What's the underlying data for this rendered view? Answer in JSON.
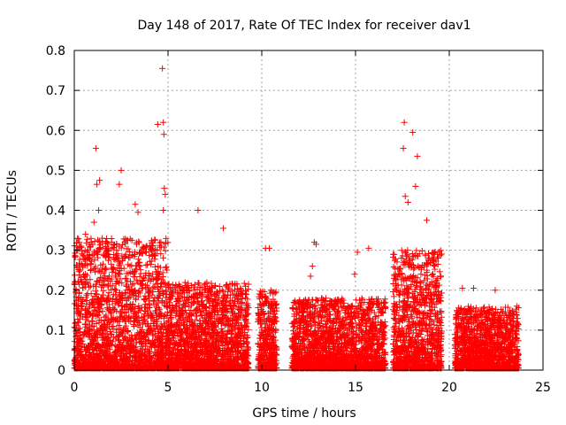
{
  "chart_data": {
    "type": "scatter",
    "title": "Day 148 of 2017, Rate Of TEC Index for receiver dav1",
    "xlabel": "GPS time / hours",
    "ylabel": "ROTI / TECUs",
    "xlim": [
      0,
      25
    ],
    "ylim": [
      0,
      0.8
    ],
    "x_ticks": [
      "0",
      "5",
      "10",
      "15",
      "20",
      "25"
    ],
    "y_ticks": [
      "0",
      "0.1",
      "0.2",
      "0.3",
      "0.4",
      "0.5",
      "0.6",
      "0.7",
      "0.8"
    ],
    "grid": true,
    "marker": "+",
    "color": "#ff0000",
    "notable_points": [
      {
        "x": 4.7,
        "y": 0.755
      },
      {
        "x": 4.45,
        "y": 0.615
      },
      {
        "x": 4.75,
        "y": 0.62
      },
      {
        "x": 4.78,
        "y": 0.59
      },
      {
        "x": 17.6,
        "y": 0.62
      },
      {
        "x": 18.05,
        "y": 0.595
      },
      {
        "x": 18.3,
        "y": 0.535
      },
      {
        "x": 1.15,
        "y": 0.555
      },
      {
        "x": 17.55,
        "y": 0.555
      },
      {
        "x": 2.5,
        "y": 0.5
      },
      {
        "x": 1.35,
        "y": 0.475
      },
      {
        "x": 1.2,
        "y": 0.465
      },
      {
        "x": 2.4,
        "y": 0.465
      },
      {
        "x": 18.2,
        "y": 0.46
      },
      {
        "x": 4.8,
        "y": 0.455
      },
      {
        "x": 4.85,
        "y": 0.44
      },
      {
        "x": 17.65,
        "y": 0.435
      },
      {
        "x": 17.8,
        "y": 0.42
      },
      {
        "x": 3.25,
        "y": 0.415
      },
      {
        "x": 4.75,
        "y": 0.4
      },
      {
        "x": 6.6,
        "y": 0.4
      },
      {
        "x": 1.3,
        "y": 0.4
      },
      {
        "x": 3.4,
        "y": 0.395
      },
      {
        "x": 1.05,
        "y": 0.37
      },
      {
        "x": 18.8,
        "y": 0.375
      },
      {
        "x": 0.6,
        "y": 0.34
      },
      {
        "x": 7.95,
        "y": 0.355
      },
      {
        "x": 12.8,
        "y": 0.32
      },
      {
        "x": 12.9,
        "y": 0.315
      },
      {
        "x": 10.2,
        "y": 0.305
      },
      {
        "x": 10.4,
        "y": 0.305
      },
      {
        "x": 15.7,
        "y": 0.305
      },
      {
        "x": 15.1,
        "y": 0.295
      },
      {
        "x": 12.7,
        "y": 0.26
      },
      {
        "x": 12.6,
        "y": 0.235
      },
      {
        "x": 14.95,
        "y": 0.24
      },
      {
        "x": 20.7,
        "y": 0.205
      },
      {
        "x": 22.45,
        "y": 0.2
      },
      {
        "x": 21.3,
        "y": 0.205
      },
      {
        "x": 23.6,
        "y": 0.16
      }
    ],
    "dense_ranges": [
      {
        "x_start": 0.0,
        "x_end": 5.0,
        "y_max": 0.33
      },
      {
        "x_start": 5.0,
        "x_end": 9.3,
        "y_max": 0.22
      },
      {
        "x_start": 9.8,
        "x_end": 10.8,
        "y_max": 0.2
      },
      {
        "x_start": 11.6,
        "x_end": 16.6,
        "y_max": 0.18
      },
      {
        "x_start": 17.0,
        "x_end": 19.6,
        "y_max": 0.3
      },
      {
        "x_start": 20.3,
        "x_end": 23.7,
        "y_max": 0.16
      }
    ]
  }
}
